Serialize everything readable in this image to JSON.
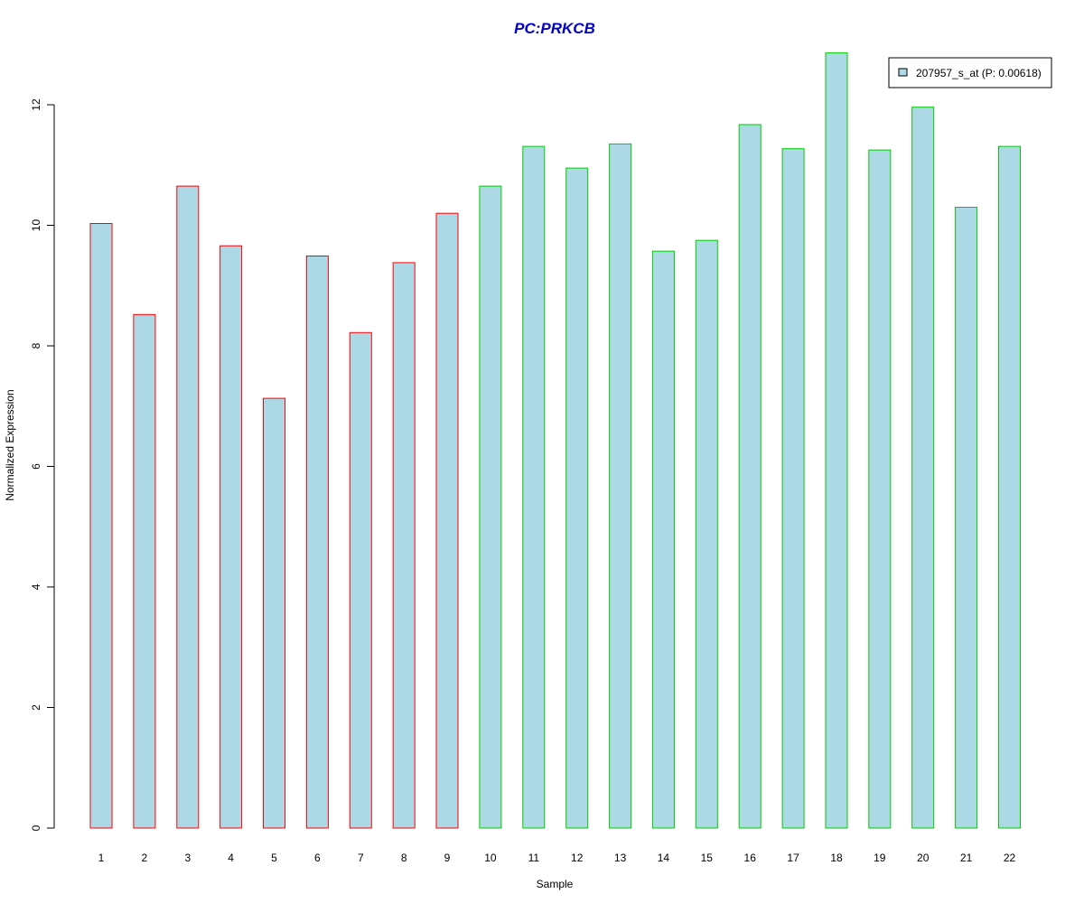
{
  "chart_data": {
    "type": "bar",
    "title": "PC:PRKCB",
    "xlabel": "Sample",
    "ylabel": "Normalized Expression",
    "categories": [
      "1",
      "2",
      "3",
      "4",
      "5",
      "6",
      "7",
      "8",
      "9",
      "10",
      "11",
      "12",
      "13",
      "14",
      "15",
      "16",
      "17",
      "18",
      "19",
      "20",
      "21",
      "22"
    ],
    "series": [
      {
        "name": "207957_s_at (P: 0.00618)",
        "values": [
          10.03,
          8.52,
          10.65,
          9.66,
          7.13,
          9.49,
          8.22,
          9.38,
          10.2,
          10.65,
          11.31,
          10.95,
          11.35,
          9.57,
          9.75,
          11.67,
          11.27,
          12.86,
          11.25,
          11.96,
          10.3,
          11.31
        ]
      }
    ],
    "groups": [
      1,
      1,
      1,
      1,
      1,
      1,
      1,
      1,
      1,
      2,
      2,
      2,
      2,
      2,
      2,
      2,
      2,
      2,
      2,
      2,
      2,
      2
    ],
    "ylim": [
      0,
      12.86
    ],
    "yticks": [
      0,
      2,
      4,
      6,
      8,
      10,
      12
    ],
    "grid": false,
    "legend_position": "top-right",
    "colors": {
      "title": "#0000cc",
      "bar_fill": "#add8e6",
      "group1_border": "#ff0000",
      "group2_border": "#00cc00",
      "axis": "#000000"
    }
  }
}
